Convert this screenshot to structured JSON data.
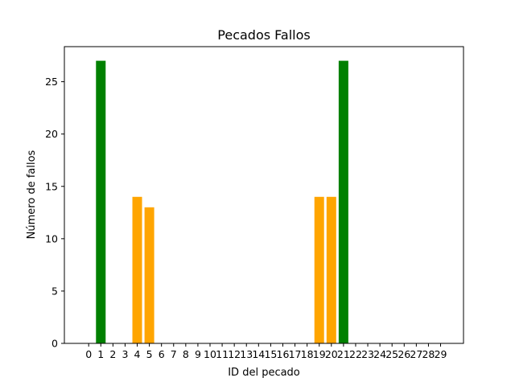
{
  "chart_data": {
    "type": "bar",
    "title": "Pecados Fallos",
    "xlabel": "ID del pecado",
    "ylabel": "Número de fallos",
    "categories": [
      "0",
      "1",
      "2",
      "3",
      "4",
      "5",
      "6",
      "7",
      "8",
      "9",
      "10",
      "11",
      "12",
      "13",
      "14",
      "15",
      "16",
      "17",
      "18",
      "19",
      "20",
      "21",
      "22",
      "23",
      "24",
      "25",
      "26",
      "27",
      "28",
      "29"
    ],
    "values": [
      0,
      27,
      0,
      0,
      14,
      13,
      0,
      0,
      0,
      0,
      0,
      0,
      0,
      0,
      0,
      0,
      0,
      0,
      0,
      14,
      14,
      27,
      0,
      0,
      0,
      0,
      0,
      0,
      0,
      0
    ],
    "bar_colors": [
      "#008000",
      "#008000",
      "#008000",
      "#008000",
      "#ffa500",
      "#ffa500",
      "#008000",
      "#008000",
      "#008000",
      "#008000",
      "#008000",
      "#008000",
      "#008000",
      "#008000",
      "#008000",
      "#008000",
      "#008000",
      "#008000",
      "#008000",
      "#ffa500",
      "#ffa500",
      "#008000",
      "#008000",
      "#008000",
      "#008000",
      "#008000",
      "#008000",
      "#008000",
      "#008000",
      "#008000"
    ],
    "y_ticks": [
      0,
      5,
      10,
      15,
      20,
      25
    ],
    "ylim": [
      0,
      28.35
    ],
    "grid": false,
    "legend": "none"
  }
}
